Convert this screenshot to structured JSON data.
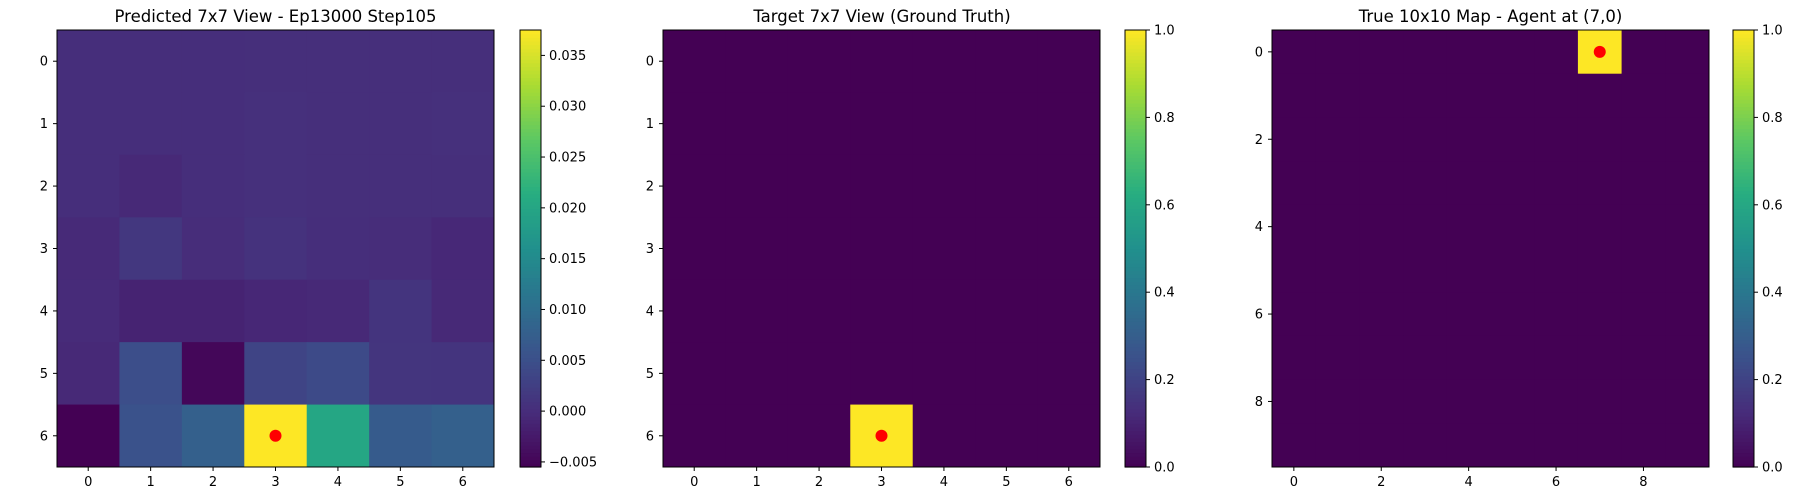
{
  "chart_data": [
    {
      "type": "heatmap",
      "title": "Predicted 7x7 View - Ep13000 Step105",
      "rows": 7,
      "cols": 7,
      "xticks": [
        0,
        1,
        2,
        3,
        4,
        5,
        6
      ],
      "yticks": [
        0,
        1,
        2,
        3,
        4,
        5,
        6
      ],
      "colormap": "viridis",
      "vmin": -0.0055,
      "vmax": 0.0375,
      "colorbar_ticks": [
        -0.005,
        0.0,
        0.005,
        0.01,
        0.015,
        0.02,
        0.025,
        0.03,
        0.035
      ],
      "colorbar_tick_labels": [
        "−0.005",
        "0.000",
        "0.005",
        "0.010",
        "0.015",
        "0.020",
        "0.025",
        "0.030",
        "0.035"
      ],
      "values": [
        [
          0.0002,
          0.0002,
          0.0002,
          0.0003,
          0.0003,
          0.0003,
          0.0003
        ],
        [
          0.0002,
          0.0002,
          0.0002,
          0.0004,
          0.0003,
          0.0003,
          0.0004
        ],
        [
          0.0001,
          -0.0005,
          0.0002,
          0.0005,
          0.0003,
          0.0003,
          0.0003
        ],
        [
          -0.0004,
          0.0015,
          0.0,
          0.0008,
          0.0002,
          0.0,
          -0.0006
        ],
        [
          -0.0002,
          -0.0012,
          -0.0012,
          -0.0007,
          -0.0005,
          0.0011,
          -0.0005
        ],
        [
          -0.0005,
          0.0048,
          -0.0048,
          0.0033,
          0.0042,
          0.0012,
          0.001
        ],
        [
          -0.0055,
          0.0055,
          0.0078,
          0.0375,
          0.02,
          0.007,
          0.0078
        ]
      ],
      "marker": {
        "col": 3,
        "row": 6,
        "color": "#ff0000"
      }
    },
    {
      "type": "heatmap",
      "title": "Target 7x7 View (Ground Truth)",
      "rows": 7,
      "cols": 7,
      "xticks": [
        0,
        1,
        2,
        3,
        4,
        5,
        6
      ],
      "yticks": [
        0,
        1,
        2,
        3,
        4,
        5,
        6
      ],
      "colormap": "viridis",
      "vmin": 0,
      "vmax": 1,
      "colorbar_ticks": [
        0.0,
        0.2,
        0.4,
        0.6,
        0.8,
        1.0
      ],
      "colorbar_tick_labels": [
        "0.0",
        "0.2",
        "0.4",
        "0.6",
        "0.8",
        "1.0"
      ],
      "values": [
        [
          0,
          0,
          0,
          0,
          0,
          0,
          0
        ],
        [
          0,
          0,
          0,
          0,
          0,
          0,
          0
        ],
        [
          0,
          0,
          0,
          0,
          0,
          0,
          0
        ],
        [
          0,
          0,
          0,
          0,
          0,
          0,
          0
        ],
        [
          0,
          0,
          0,
          0,
          0,
          0,
          0
        ],
        [
          0,
          0,
          0,
          0,
          0,
          0,
          0
        ],
        [
          0,
          0,
          0,
          1,
          0,
          0,
          0
        ]
      ],
      "marker": {
        "col": 3,
        "row": 6,
        "color": "#ff0000"
      }
    },
    {
      "type": "heatmap",
      "title": "True 10x10 Map - Agent at (7,0)",
      "rows": 10,
      "cols": 10,
      "xticks": [
        0,
        2,
        4,
        6,
        8
      ],
      "yticks": [
        0,
        2,
        4,
        6,
        8
      ],
      "colormap": "viridis",
      "vmin": 0,
      "vmax": 1,
      "colorbar_ticks": [
        0.0,
        0.2,
        0.4,
        0.6,
        0.8,
        1.0
      ],
      "colorbar_tick_labels": [
        "0.0",
        "0.2",
        "0.4",
        "0.6",
        "0.8",
        "1.0"
      ],
      "values": [
        [
          0,
          0,
          0,
          0,
          0,
          0,
          0,
          1,
          0,
          0
        ],
        [
          0,
          0,
          0,
          0,
          0,
          0,
          0,
          0,
          0,
          0
        ],
        [
          0,
          0,
          0,
          0,
          0,
          0,
          0,
          0,
          0,
          0
        ],
        [
          0,
          0,
          0,
          0,
          0,
          0,
          0,
          0,
          0,
          0
        ],
        [
          0,
          0,
          0,
          0,
          0,
          0,
          0,
          0,
          0,
          0
        ],
        [
          0,
          0,
          0,
          0,
          0,
          0,
          0,
          0,
          0,
          0
        ],
        [
          0,
          0,
          0,
          0,
          0,
          0,
          0,
          0,
          0,
          0
        ],
        [
          0,
          0,
          0,
          0,
          0,
          0,
          0,
          0,
          0,
          0
        ],
        [
          0,
          0,
          0,
          0,
          0,
          0,
          0,
          0,
          0,
          0
        ],
        [
          0,
          0,
          0,
          0,
          0,
          0,
          0,
          0,
          0,
          0
        ]
      ],
      "marker": {
        "col": 7,
        "row": 0,
        "color": "#ff0000"
      }
    }
  ]
}
